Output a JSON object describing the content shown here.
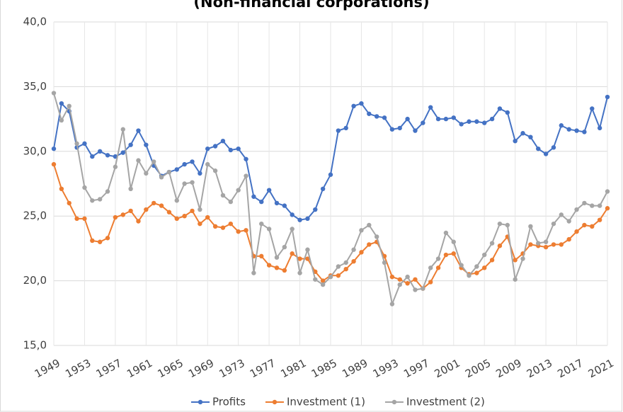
{
  "chart_data": {
    "type": "line",
    "title": "(Non-financial corporations)",
    "x": [
      1949,
      1950,
      1951,
      1952,
      1953,
      1954,
      1955,
      1956,
      1957,
      1958,
      1959,
      1960,
      1961,
      1962,
      1963,
      1964,
      1965,
      1966,
      1967,
      1968,
      1969,
      1970,
      1971,
      1972,
      1973,
      1974,
      1975,
      1976,
      1977,
      1978,
      1979,
      1980,
      1981,
      1982,
      1983,
      1984,
      1985,
      1986,
      1987,
      1988,
      1989,
      1990,
      1991,
      1992,
      1993,
      1994,
      1995,
      1996,
      1997,
      1998,
      1999,
      2000,
      2001,
      2002,
      2003,
      2004,
      2005,
      2006,
      2007,
      2008,
      2009,
      2010,
      2011,
      2012,
      2013,
      2014,
      2015,
      2016,
      2017,
      2018,
      2019,
      2020,
      2021
    ],
    "series": [
      {
        "name": "Profits",
        "color": "#4472c4",
        "values": [
          30.2,
          33.7,
          33.1,
          30.3,
          30.6,
          29.6,
          30.0,
          29.7,
          29.6,
          29.9,
          30.5,
          31.6,
          30.5,
          28.9,
          28.1,
          28.4,
          28.6,
          29.0,
          29.2,
          28.3,
          30.2,
          30.4,
          30.8,
          30.1,
          30.2,
          29.4,
          26.5,
          26.1,
          27.0,
          26.0,
          25.8,
          25.1,
          24.7,
          24.8,
          25.5,
          27.1,
          28.2,
          31.6,
          31.8,
          33.5,
          33.7,
          32.9,
          32.7,
          32.6,
          31.7,
          31.8,
          32.5,
          31.6,
          32.2,
          33.4,
          32.5,
          32.5,
          32.6,
          32.1,
          32.3,
          32.3,
          32.2,
          32.5,
          33.3,
          33.0,
          30.8,
          31.4,
          31.1,
          30.2,
          29.8,
          30.3,
          32.0,
          31.7,
          31.6,
          31.5,
          33.3,
          31.8,
          34.2
        ]
      },
      {
        "name": "Investment (1)",
        "color": "#ed7d31",
        "values": [
          29.0,
          27.1,
          26.0,
          24.8,
          24.8,
          23.1,
          23.0,
          23.3,
          24.9,
          25.1,
          25.4,
          24.6,
          25.5,
          26.0,
          25.8,
          25.3,
          24.8,
          25.0,
          25.4,
          24.4,
          24.9,
          24.2,
          24.1,
          24.4,
          23.8,
          23.9,
          21.9,
          21.9,
          21.2,
          21.0,
          20.8,
          22.1,
          21.7,
          21.7,
          20.7,
          20.0,
          20.4,
          20.4,
          20.9,
          21.5,
          22.2,
          22.8,
          23.0,
          21.9,
          20.3,
          20.1,
          19.8,
          20.1,
          19.4,
          19.9,
          21.0,
          22.0,
          22.1,
          21.0,
          20.5,
          20.6,
          21.0,
          21.6,
          22.7,
          23.4,
          21.6,
          22.1,
          22.8,
          22.7,
          22.6,
          22.8,
          22.8,
          23.2,
          23.8,
          24.3,
          24.2,
          24.7,
          25.6
        ]
      },
      {
        "name": "Investment (2)",
        "color": "#a5a5a5",
        "values": [
          34.5,
          32.4,
          33.5,
          30.6,
          27.2,
          26.2,
          26.3,
          26.9,
          28.8,
          31.7,
          27.1,
          29.3,
          28.3,
          29.2,
          28.0,
          28.4,
          26.2,
          27.5,
          27.6,
          25.5,
          29.0,
          28.5,
          26.6,
          26.1,
          27.0,
          28.1,
          20.6,
          24.4,
          24.0,
          21.8,
          22.6,
          24.0,
          20.6,
          22.4,
          20.1,
          19.7,
          20.3,
          21.1,
          21.4,
          22.4,
          23.9,
          24.3,
          23.4,
          21.4,
          18.2,
          19.7,
          20.3,
          19.3,
          19.4,
          21.0,
          21.7,
          23.7,
          23.0,
          21.2,
          20.4,
          21.1,
          22.0,
          22.9,
          24.4,
          24.3,
          20.1,
          21.7,
          24.2,
          22.9,
          23.0,
          24.4,
          25.1,
          24.6,
          25.5,
          26.0,
          25.8,
          25.8,
          26.9
        ]
      }
    ],
    "xlim": [
      1949,
      2021
    ],
    "xticks": [
      1949,
      1953,
      1957,
      1961,
      1965,
      1969,
      1973,
      1977,
      1981,
      1985,
      1989,
      1993,
      1997,
      2001,
      2005,
      2009,
      2013,
      2017,
      2021
    ],
    "ylim": [
      15,
      40
    ],
    "yticks": [
      {
        "value": 15,
        "label": "15,0"
      },
      {
        "value": 20,
        "label": "20,0"
      },
      {
        "value": 25,
        "label": "25,0"
      },
      {
        "value": 30,
        "label": "30,0"
      },
      {
        "value": 35,
        "label": "35,0"
      },
      {
        "value": 40,
        "label": "40,0"
      }
    ],
    "grid": true,
    "legend": "bottom"
  }
}
